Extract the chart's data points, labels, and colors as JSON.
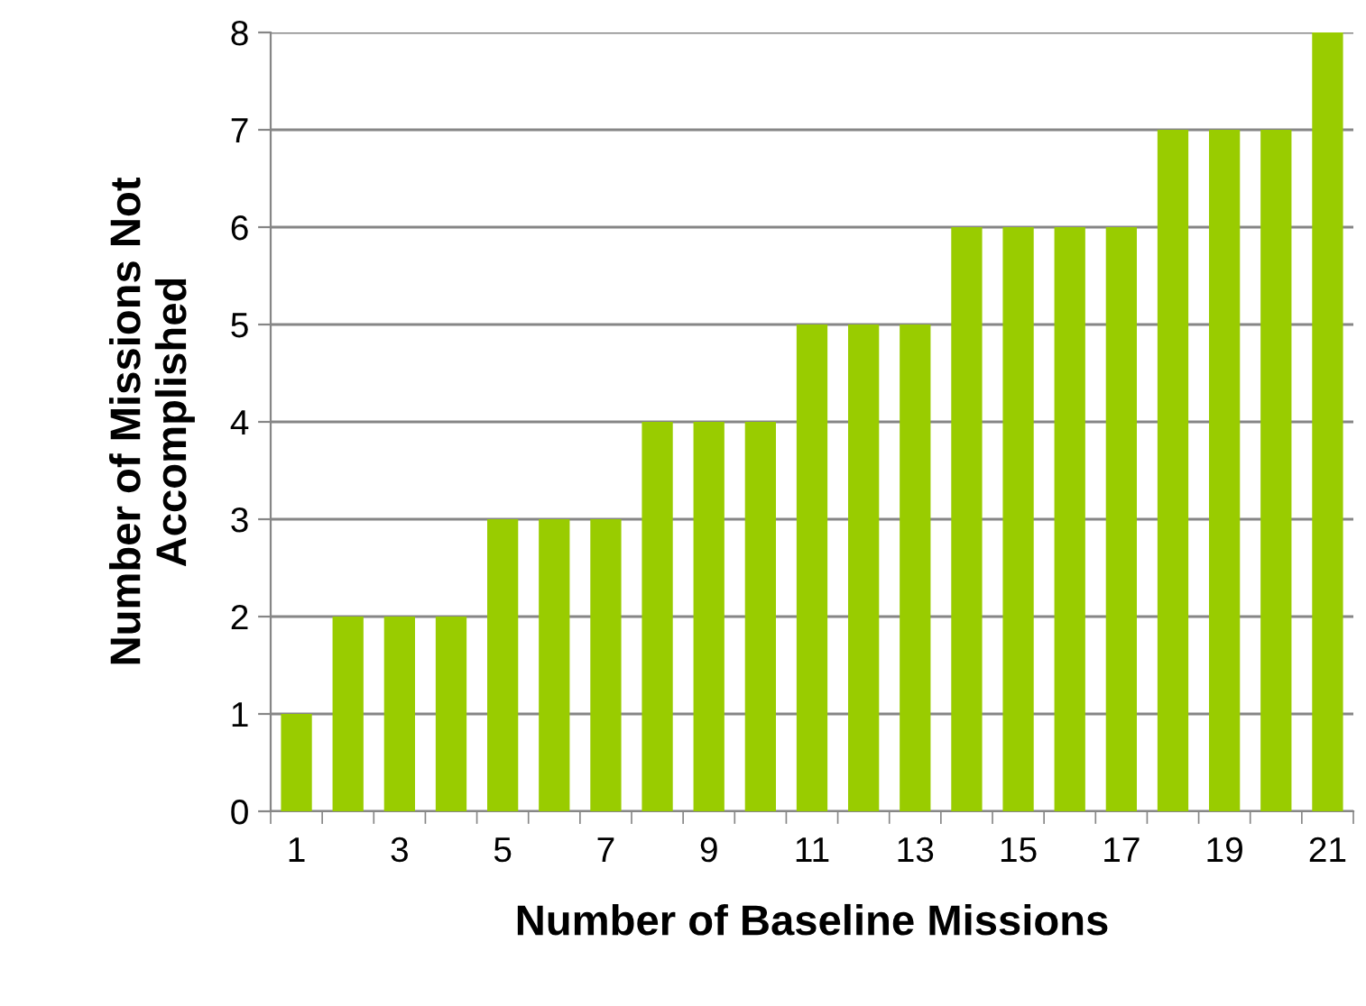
{
  "chart_data": {
    "type": "bar",
    "categories": [
      "1",
      null,
      "3",
      null,
      "5",
      null,
      "7",
      null,
      "9",
      null,
      "11",
      null,
      "13",
      null,
      "15",
      null,
      "17",
      null,
      "19",
      null,
      "21"
    ],
    "values": [
      1,
      2,
      2,
      2,
      3,
      3,
      3,
      4,
      4,
      4,
      5,
      5,
      5,
      6,
      6,
      6,
      6,
      7,
      7,
      7,
      8
    ],
    "color": "#99cc00",
    "xlabel": "Number of Baseline Missions",
    "ylabel": "Number of Missions Not\nAccomplished",
    "ylim": [
      0,
      8
    ],
    "yticks": [
      0,
      1,
      2,
      3,
      4,
      5,
      6,
      7,
      8
    ],
    "grid": "y",
    "legend": false
  }
}
